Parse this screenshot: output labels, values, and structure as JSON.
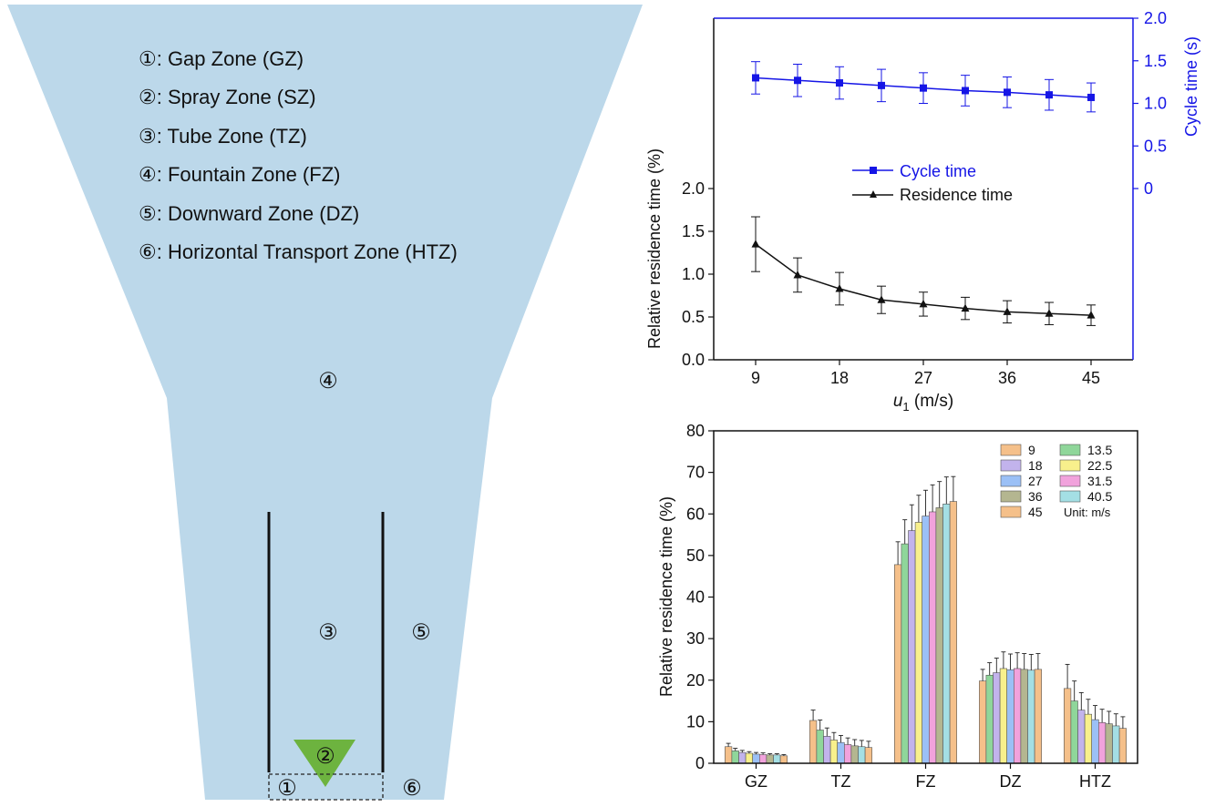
{
  "diagram": {
    "legend": [
      "①: Gap Zone (GZ)",
      "②: Spray Zone (SZ)",
      "③: Tube Zone (TZ)",
      "④: Fountain Zone (FZ)",
      "⑤: Downward Zone (DZ)",
      "⑥: Horizontal Transport Zone (HTZ)"
    ],
    "markers": {
      "z1": "①",
      "z2": "②",
      "z3": "③",
      "z4": "④",
      "z5": "⑤",
      "z6": "⑥"
    },
    "colors": {
      "bed": "#bcd8ea",
      "spray": "#6db33f",
      "wall": "#111111"
    }
  },
  "chart_data": [
    {
      "type": "line",
      "xlabel_var": "u",
      "xlabel_sub": "1",
      "xlabel_unit": " (m/s)",
      "ylabel": "Relative residence time (%)",
      "y2label": "Cycle time (s)",
      "x": [
        9,
        13.5,
        18,
        22.5,
        27,
        31.5,
        36,
        40.5,
        45
      ],
      "xticks": [
        9,
        18,
        27,
        36,
        45
      ],
      "yticks": [
        0.0,
        0.5,
        1.0,
        1.5,
        2.0
      ],
      "yticklabels": [
        "0.0",
        "0.5",
        "1.0",
        "1.5",
        "2.0"
      ],
      "y2ticks": [
        0,
        0.5,
        1.0,
        1.5,
        2.0
      ],
      "y2ticklabels": [
        "0",
        "0.5",
        "1.0",
        "1.5",
        "2.0"
      ],
      "series": [
        {
          "name": "Cycle time",
          "axis": "right",
          "marker": "square",
          "color": "#1515e6",
          "values": [
            1.3,
            1.27,
            1.24,
            1.21,
            1.18,
            1.15,
            1.13,
            1.1,
            1.07
          ],
          "errors": [
            0.19,
            0.19,
            0.19,
            0.19,
            0.18,
            0.18,
            0.18,
            0.18,
            0.17
          ]
        },
        {
          "name": "Residence time",
          "axis": "left",
          "marker": "triangle",
          "color": "#111111",
          "values": [
            1.35,
            0.99,
            0.83,
            0.7,
            0.65,
            0.6,
            0.56,
            0.54,
            0.52
          ],
          "errors": [
            0.32,
            0.2,
            0.19,
            0.16,
            0.14,
            0.13,
            0.13,
            0.13,
            0.12
          ]
        }
      ]
    },
    {
      "type": "bar",
      "ylabel": "Relative residence time (%)",
      "categories": [
        "GZ",
        "TZ",
        "FZ",
        "DZ",
        "HTZ"
      ],
      "yticks": [
        0,
        10,
        20,
        30,
        40,
        50,
        60,
        70,
        80
      ],
      "legend_unit": "Unit: m/s",
      "series": [
        {
          "name": "9",
          "color": "#f5c08a",
          "values": [
            4.0,
            10.3,
            47.8,
            19.8,
            18.0
          ],
          "errors": [
            0.8,
            2.5,
            5.5,
            2.8,
            5.8
          ]
        },
        {
          "name": "13.5",
          "color": "#8fd69a",
          "values": [
            3.0,
            8.0,
            52.8,
            21.2,
            15.0
          ],
          "errors": [
            0.6,
            2.4,
            5.8,
            3.0,
            4.8
          ]
        },
        {
          "name": "18",
          "color": "#c2b3ec",
          "values": [
            2.6,
            6.5,
            56.0,
            21.8,
            12.8
          ],
          "errors": [
            0.5,
            2.0,
            6.2,
            3.5,
            4.2
          ]
        },
        {
          "name": "22.5",
          "color": "#f8f08c",
          "values": [
            2.4,
            5.6,
            58.0,
            22.8,
            11.8
          ],
          "errors": [
            0.4,
            1.8,
            6.5,
            4.0,
            3.6
          ]
        },
        {
          "name": "27",
          "color": "#9bc0f6",
          "values": [
            2.2,
            5.0,
            59.5,
            22.5,
            10.5
          ],
          "errors": [
            0.4,
            1.7,
            6.2,
            3.8,
            3.4
          ]
        },
        {
          "name": "31.5",
          "color": "#f1a2dc",
          "values": [
            2.1,
            4.5,
            60.5,
            22.8,
            9.8
          ],
          "errors": [
            0.4,
            1.6,
            6.5,
            3.8,
            3.2
          ]
        },
        {
          "name": "36",
          "color": "#b4b690",
          "values": [
            2.0,
            4.2,
            61.5,
            22.6,
            9.5
          ],
          "errors": [
            0.3,
            1.5,
            6.3,
            3.8,
            3.0
          ]
        },
        {
          "name": "40.5",
          "color": "#a4dfe4",
          "values": [
            2.0,
            4.0,
            62.4,
            22.4,
            9.0
          ],
          "errors": [
            0.3,
            1.5,
            6.5,
            3.8,
            2.9
          ]
        },
        {
          "name": "45",
          "color": "#f5c08a",
          "values": [
            1.8,
            3.8,
            63.0,
            22.6,
            8.4
          ],
          "errors": [
            0.3,
            1.5,
            6.0,
            3.8,
            2.8
          ]
        }
      ]
    }
  ]
}
